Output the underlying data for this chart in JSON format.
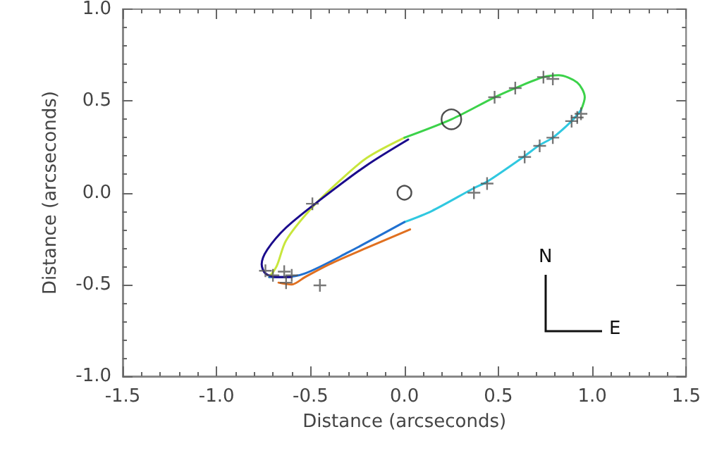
{
  "chart_data": {
    "type": "line",
    "xlabel": "Distance (arcseconds)",
    "ylabel": "Distance (arcseconds)",
    "xlim": [
      -1.5,
      1.5
    ],
    "ylim": [
      -1.0,
      1.0
    ],
    "xticks": [
      {
        "value": -1.5,
        "label": "-1.5"
      },
      {
        "value": -1.0,
        "label": "-1.0"
      },
      {
        "value": -0.5,
        "label": "-0.5"
      },
      {
        "value": 0,
        "label": "0.0"
      },
      {
        "value": 0.5,
        "label": "0.5"
      },
      {
        "value": 1.0,
        "label": "1.0"
      },
      {
        "value": 1.5,
        "label": "1.5"
      }
    ],
    "yticks": [
      {
        "value": -1.0,
        "label": "-1.0"
      },
      {
        "value": -0.5,
        "label": "-0.5"
      },
      {
        "value": 0,
        "label": "0.0"
      },
      {
        "value": 0.5,
        "label": "0.5"
      },
      {
        "value": 1.0,
        "label": "1.0"
      }
    ],
    "marker": "none",
    "line_style": "solid",
    "annotations": [
      "N",
      "E"
    ],
    "series": [
      {
        "color": "#c8e63c",
        "x": [
          -0.72,
          -0.68,
          -0.63,
          -0.5,
          -0.35,
          -0.2,
          0
        ],
        "values": [
          -0.46,
          -0.4,
          -0.26,
          -0.09,
          0.06,
          0.19,
          0.3
        ]
      },
      {
        "color": "#3cd24a",
        "x": [
          0,
          0.25,
          0.48,
          0.59,
          0.74,
          0.82,
          0.92,
          0.96,
          0.94
        ],
        "values": [
          0.3,
          0.4,
          0.52,
          0.57,
          0.63,
          0.64,
          0.6,
          0.52,
          0.45
        ]
      },
      {
        "color": "#30c8e0",
        "x": [
          0.94,
          0.89,
          0.79,
          0.72,
          0.64,
          0.44,
          0.37,
          0.145,
          0
        ],
        "values": [
          0.45,
          0.39,
          0.3,
          0.26,
          0.2,
          0.06,
          0.025,
          -0.1,
          -0.16
        ]
      },
      {
        "color": "#2070d0",
        "x": [
          0,
          -0.3,
          -0.53,
          -0.65,
          -0.72
        ],
        "values": [
          -0.16,
          -0.325,
          -0.44,
          -0.46,
          -0.46
        ]
      },
      {
        "color": "#1a0a8c",
        "x": [
          0.02,
          -0.2,
          -0.45,
          -0.63,
          -0.73,
          -0.76,
          -0.74,
          -0.68,
          -0.6
        ],
        "values": [
          0.29,
          0.15,
          -0.04,
          -0.19,
          -0.31,
          -0.39,
          -0.44,
          -0.46,
          -0.46
        ]
      },
      {
        "color": "#e07020",
        "x": [
          0.03,
          -0.2,
          -0.4,
          -0.53,
          -0.6,
          -0.67
        ],
        "values": [
          -0.2,
          -0.3,
          -0.39,
          -0.46,
          -0.5,
          -0.49
        ]
      },
      {
        "type": "scatter",
        "marker": "cross",
        "color": "#555555",
        "x": [
          -0.49,
          0.48,
          0.59,
          0.74,
          0.79,
          0.92,
          0.94,
          0.89,
          0.79,
          0.72,
          0.64,
          0.44,
          0.37,
          -0.74,
          -0.7,
          -0.64,
          -0.63,
          -0.6,
          -0.45
        ],
        "values": [
          -0.06,
          0.52,
          0.57,
          0.63,
          0.62,
          0.41,
          0.43,
          0.39,
          0.3,
          0.255,
          0.195,
          0.05,
          0.0,
          -0.425,
          -0.45,
          -0.43,
          -0.49,
          -0.45,
          -0.505
        ]
      },
      {
        "type": "scatter",
        "marker": "circle",
        "color": "#222222",
        "x": [
          0,
          0.25
        ],
        "values": [
          0,
          0.4
        ],
        "sizes": [
          0.5,
          1
        ]
      }
    ]
  }
}
